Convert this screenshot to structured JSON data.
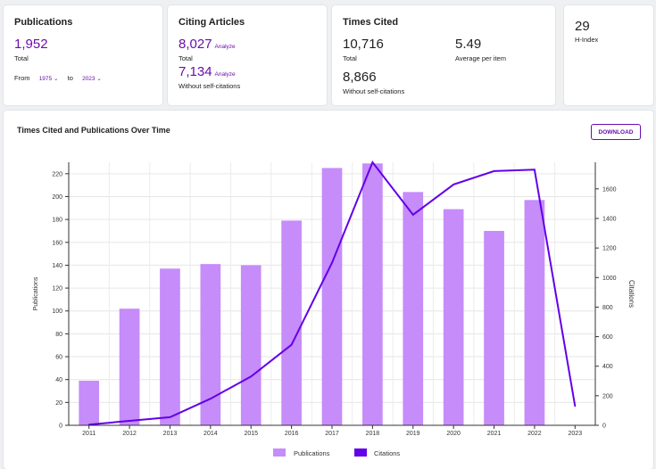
{
  "publications": {
    "title": "Publications",
    "value": "1,952",
    "sub": "Total",
    "from_label": "From",
    "from_value": "1975",
    "to_label": "to",
    "to_value": "2023"
  },
  "citing": {
    "title": "Citing Articles",
    "value": "8,027",
    "analyze": "Analyze",
    "sub": "Total",
    "value2": "7,134",
    "analyze2": "Analyze",
    "sub2": "Without self-citations"
  },
  "times_cited": {
    "title": "Times Cited",
    "value": "10,716",
    "sub": "Total",
    "avg_value": "5.49",
    "avg_sub": "Average per item",
    "value2": "8,866",
    "sub2": "Without self-citations"
  },
  "hindex": {
    "value": "29",
    "label": "H-Index"
  },
  "chart_section": {
    "title": "Times Cited and Publications Over Time",
    "download": "DOWNLOAD"
  },
  "colors": {
    "accent": "#6a0dad",
    "bar": "#c68cf9",
    "line": "#6200ea"
  },
  "chart_data": {
    "type": "bar",
    "title": "Times Cited and Publications Over Time",
    "categories": [
      "2011",
      "2012",
      "2013",
      "2014",
      "2015",
      "2016",
      "2017",
      "2018",
      "2019",
      "2020",
      "2021",
      "2022",
      "2023"
    ],
    "series": [
      {
        "name": "Publications",
        "type": "bar",
        "axis": "left",
        "values": [
          39,
          102,
          137,
          141,
          140,
          179,
          225,
          229,
          204,
          189,
          170,
          197,
          0
        ]
      },
      {
        "name": "Citations",
        "type": "line",
        "axis": "right",
        "values": [
          5,
          30,
          55,
          180,
          330,
          545,
          1100,
          1780,
          1425,
          1630,
          1720,
          1730,
          130
        ]
      }
    ],
    "ylabel": "Publications",
    "y2label": "Citations",
    "ylim": [
      0,
      230
    ],
    "y2lim": [
      0,
      1780
    ],
    "yticks": [
      0,
      20,
      40,
      60,
      80,
      100,
      120,
      140,
      160,
      180,
      200,
      220
    ],
    "y2ticks": [
      0,
      200,
      400,
      600,
      800,
      1000,
      1200,
      1400,
      1600
    ],
    "grid": true,
    "legend": "bottom-center"
  }
}
